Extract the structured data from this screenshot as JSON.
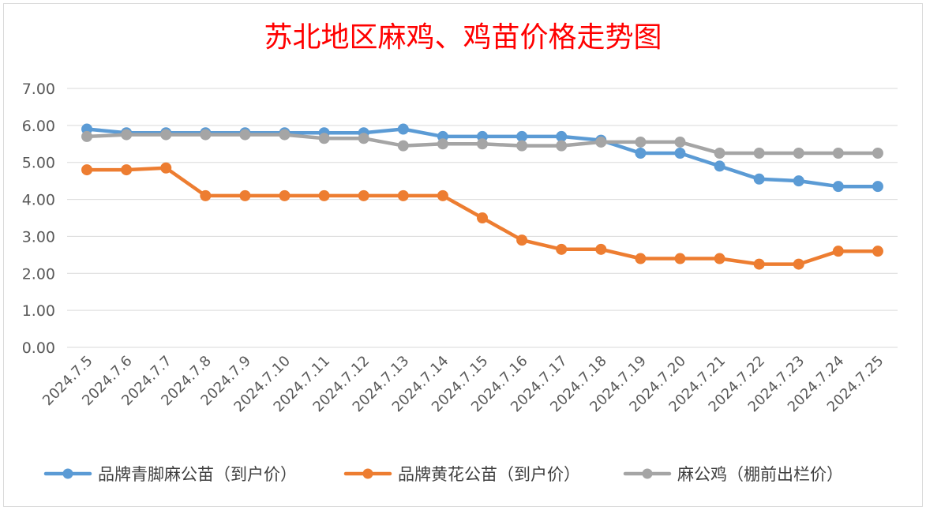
{
  "chart_data": {
    "type": "line",
    "title": "苏北地区麻鸡、鸡苗价格走势图",
    "title_color": "#FF0000",
    "xlabel": "",
    "ylabel": "",
    "categories": [
      "2024.7.5",
      "2024.7.6",
      "2024.7.7",
      "2024.7.8",
      "2024.7.9",
      "2024.7.10",
      "2024.7.11",
      "2024.7.12",
      "2024.7.13",
      "2024.7.14",
      "2024.7.15",
      "2024.7.16",
      "2024.7.17",
      "2024.7.18",
      "2024.7.19",
      "2024.7.20",
      "2024.7.21",
      "2024.7.22",
      "2024.7.23",
      "2024.7.24",
      "2024.7.25"
    ],
    "yticks": [
      "0.00",
      "1.00",
      "2.00",
      "3.00",
      "4.00",
      "5.00",
      "6.00",
      "7.00"
    ],
    "ylim": [
      0,
      7
    ],
    "grid": true,
    "legend_position": "bottom",
    "series": [
      {
        "name": "品牌青脚麻公苗（到户价）",
        "color": "#5B9BD5",
        "values": [
          5.9,
          5.8,
          5.8,
          5.8,
          5.8,
          5.8,
          5.8,
          5.8,
          5.9,
          5.7,
          5.7,
          5.7,
          5.7,
          5.6,
          5.25,
          5.25,
          4.9,
          4.55,
          4.5,
          4.35,
          4.35
        ]
      },
      {
        "name": "品牌黄花公苗（到户价）",
        "color": "#ED7D31",
        "values": [
          4.8,
          4.8,
          4.85,
          4.1,
          4.1,
          4.1,
          4.1,
          4.1,
          4.1,
          4.1,
          3.5,
          2.9,
          2.65,
          2.65,
          2.4,
          2.4,
          2.4,
          2.25,
          2.25,
          2.6,
          2.6
        ]
      },
      {
        "name": "麻公鸡（棚前出栏价）",
        "color": "#A5A5A5",
        "values": [
          5.7,
          5.75,
          5.75,
          5.75,
          5.75,
          5.75,
          5.65,
          5.65,
          5.45,
          5.5,
          5.5,
          5.45,
          5.45,
          5.55,
          5.55,
          5.55,
          5.25,
          5.25,
          5.25,
          5.25,
          5.25
        ]
      }
    ]
  }
}
